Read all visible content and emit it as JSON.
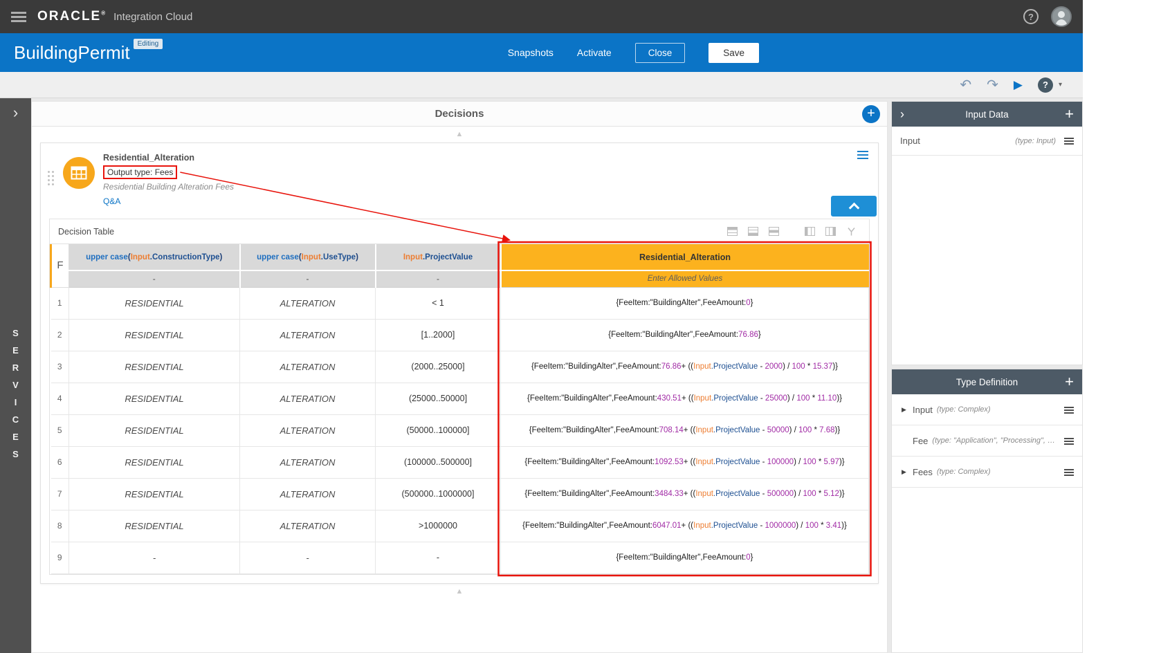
{
  "topbar": {
    "brand": "ORACLE",
    "registered_mark": "®",
    "product": "Integration Cloud"
  },
  "appbar": {
    "title": "BuildingPermit",
    "badge": "Editing",
    "snapshots_label": "Snapshots",
    "activate_label": "Activate",
    "close_label": "Close",
    "save_label": "Save"
  },
  "left_rail": {
    "label": "SERVICES"
  },
  "decisions": {
    "panel_title": "Decisions",
    "decision": {
      "name": "Residential_Alteration",
      "output_type_label": "Output type: Fees",
      "description": "Residential Building Alteration Fees",
      "qa_label": "Q&A"
    },
    "table_section_label": "Decision Table"
  },
  "decision_table": {
    "hit_policy": "F",
    "condition_columns": [
      {
        "header": "upper case(Input.ConstructionType)",
        "subheader": "-"
      },
      {
        "header": "upper case(Input.UseType)",
        "subheader": "-"
      },
      {
        "header": "Input.ProjectValue",
        "subheader": "-"
      }
    ],
    "output_column": {
      "header": "Residential_Alteration",
      "subheader": "Enter Allowed Values"
    },
    "rows": [
      {
        "num": "1",
        "construction_type": "RESIDENTIAL",
        "use_type": "ALTERATION",
        "project_value": "< 1",
        "output": "{FeeItem:\"BuildingAlter\",FeeAmount:0}"
      },
      {
        "num": "2",
        "construction_type": "RESIDENTIAL",
        "use_type": "ALTERATION",
        "project_value": "[1..2000]",
        "output": "{FeeItem:\"BuildingAlter\",FeeAmount:76.86}"
      },
      {
        "num": "3",
        "construction_type": "RESIDENTIAL",
        "use_type": "ALTERATION",
        "project_value": "(2000..25000]",
        "output": "{FeeItem:\"BuildingAlter\",FeeAmount:76.86+ ((Input.ProjectValue - 2000) / 100 * 15.37)}"
      },
      {
        "num": "4",
        "construction_type": "RESIDENTIAL",
        "use_type": "ALTERATION",
        "project_value": "(25000..50000]",
        "output": "{FeeItem:\"BuildingAlter\",FeeAmount:430.51+ ((Input.ProjectValue - 25000) / 100 * 11.10)}"
      },
      {
        "num": "5",
        "construction_type": "RESIDENTIAL",
        "use_type": "ALTERATION",
        "project_value": "(50000..100000]",
        "output": "{FeeItem:\"BuildingAlter\",FeeAmount:708.14+ ((Input.ProjectValue - 50000) / 100 * 7.68)}"
      },
      {
        "num": "6",
        "construction_type": "RESIDENTIAL",
        "use_type": "ALTERATION",
        "project_value": "(100000..500000]",
        "output": "{FeeItem:\"BuildingAlter\",FeeAmount:1092.53+ ((Input.ProjectValue - 100000) / 100 * 5.97)}"
      },
      {
        "num": "7",
        "construction_type": "RESIDENTIAL",
        "use_type": "ALTERATION",
        "project_value": "(500000..1000000]",
        "output": "{FeeItem:\"BuildingAlter\",FeeAmount:3484.33+ ((Input.ProjectValue - 500000) / 100 * 5.12)}"
      },
      {
        "num": "8",
        "construction_type": "RESIDENTIAL",
        "use_type": "ALTERATION",
        "project_value": ">1000000",
        "output": "{FeeItem:\"BuildingAlter\",FeeAmount:6047.01+ ((Input.ProjectValue - 1000000) / 100 * 3.41)}"
      },
      {
        "num": "9",
        "construction_type": "-",
        "use_type": "-",
        "project_value": "-",
        "output": "{FeeItem:\"BuildingAlter\",FeeAmount:0}"
      }
    ]
  },
  "right_panel": {
    "input_data": {
      "title": "Input Data",
      "items": [
        {
          "label": "Input",
          "type": "(type: Input)"
        }
      ]
    },
    "type_definition": {
      "title": "Type Definition",
      "items": [
        {
          "expander": "▶",
          "label": "Input",
          "type": "(type: Complex)"
        },
        {
          "expander": "",
          "label": "Fee",
          "type": "(type: \"Application\", \"Processing\", …"
        },
        {
          "expander": "▶",
          "label": "Fees",
          "type": "(type: Complex)"
        }
      ]
    }
  },
  "icons": {
    "undo": "↶",
    "redo": "↷",
    "play": "▶",
    "help": "?",
    "caret_down": "▾",
    "add": "+",
    "scroll_up": "▲",
    "scroll_down": "▲",
    "rail_expand": "›",
    "panel_collapse": "›"
  },
  "colors": {
    "brand_blue": "#0b74c6",
    "output_amber": "#fcb21e",
    "condition_header_gray": "#d9d9d9",
    "annotation_red": "#e8140c",
    "panel_header_gray": "#4d5a66",
    "decision_icon_orange": "#f7a71b",
    "topbar_gray": "#3a3a3a"
  }
}
